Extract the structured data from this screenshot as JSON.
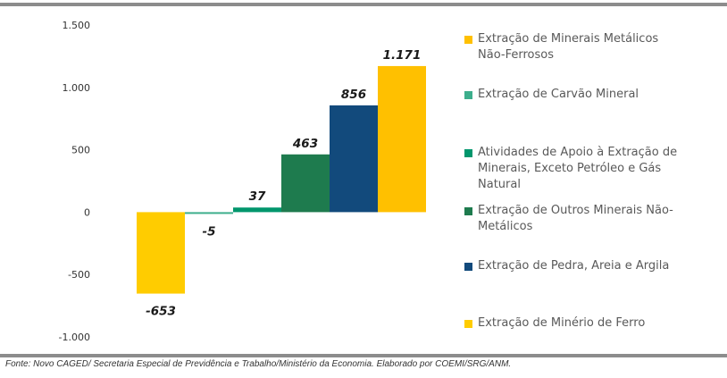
{
  "chart_data": {
    "type": "bar",
    "categories": [
      "Extração de Minério de Ferro",
      "Extração de Carvão Mineral",
      "Atividades de Apoio à Extração de Minerais, Exceto Petróleo e Gás Natural",
      "Extração de Outros Minerais Não-Metálicos",
      "Extração de Pedra, Areia e Argila",
      "Extração de Minerais Metálicos Não-Ferrosos"
    ],
    "values": [
      -653,
      -5,
      37,
      463,
      856,
      1171
    ],
    "data_labels": [
      "-653",
      "-5",
      "37",
      "463",
      "856",
      "1.171"
    ],
    "colors": [
      "#FFCC00",
      "#3DAE8C",
      "#00966C",
      "#1E7B4E",
      "#124A7C",
      "#FFC000"
    ],
    "ylim": [
      -1000,
      1500
    ],
    "yticks": [
      1500,
      1000,
      500,
      0,
      -500,
      -1000
    ],
    "ytick_labels": [
      "1.500",
      "1.000",
      "500",
      "0",
      "-500",
      "-1.000"
    ],
    "grid": false,
    "legend_position": "right",
    "title": "",
    "xlabel": "",
    "ylabel": ""
  },
  "legend": [
    {
      "label": "Extração de Minerais Metálicos Não-Ferrosos",
      "color": "#FFC000"
    },
    {
      "label": "Extração de Carvão Mineral",
      "color": "#3DAE8C"
    },
    {
      "label": "Atividades de Apoio à Extração de Minerais, Exceto Petróleo e Gás Natural",
      "color": "#00966C"
    },
    {
      "label": "Extração de Outros Minerais Não-Metálicos",
      "color": "#1E7B4E"
    },
    {
      "label": "Extração de Pedra, Areia e Argila",
      "color": "#124A7C"
    },
    {
      "label": "Extração de Minério de Ferro",
      "color": "#FFCC00"
    }
  ],
  "source": "Fonte: Novo CAGED/ Secretaria Especial de Previdência e Trabalho/Ministério da Economia. Elaborado por COEMI/SRG/ANM."
}
